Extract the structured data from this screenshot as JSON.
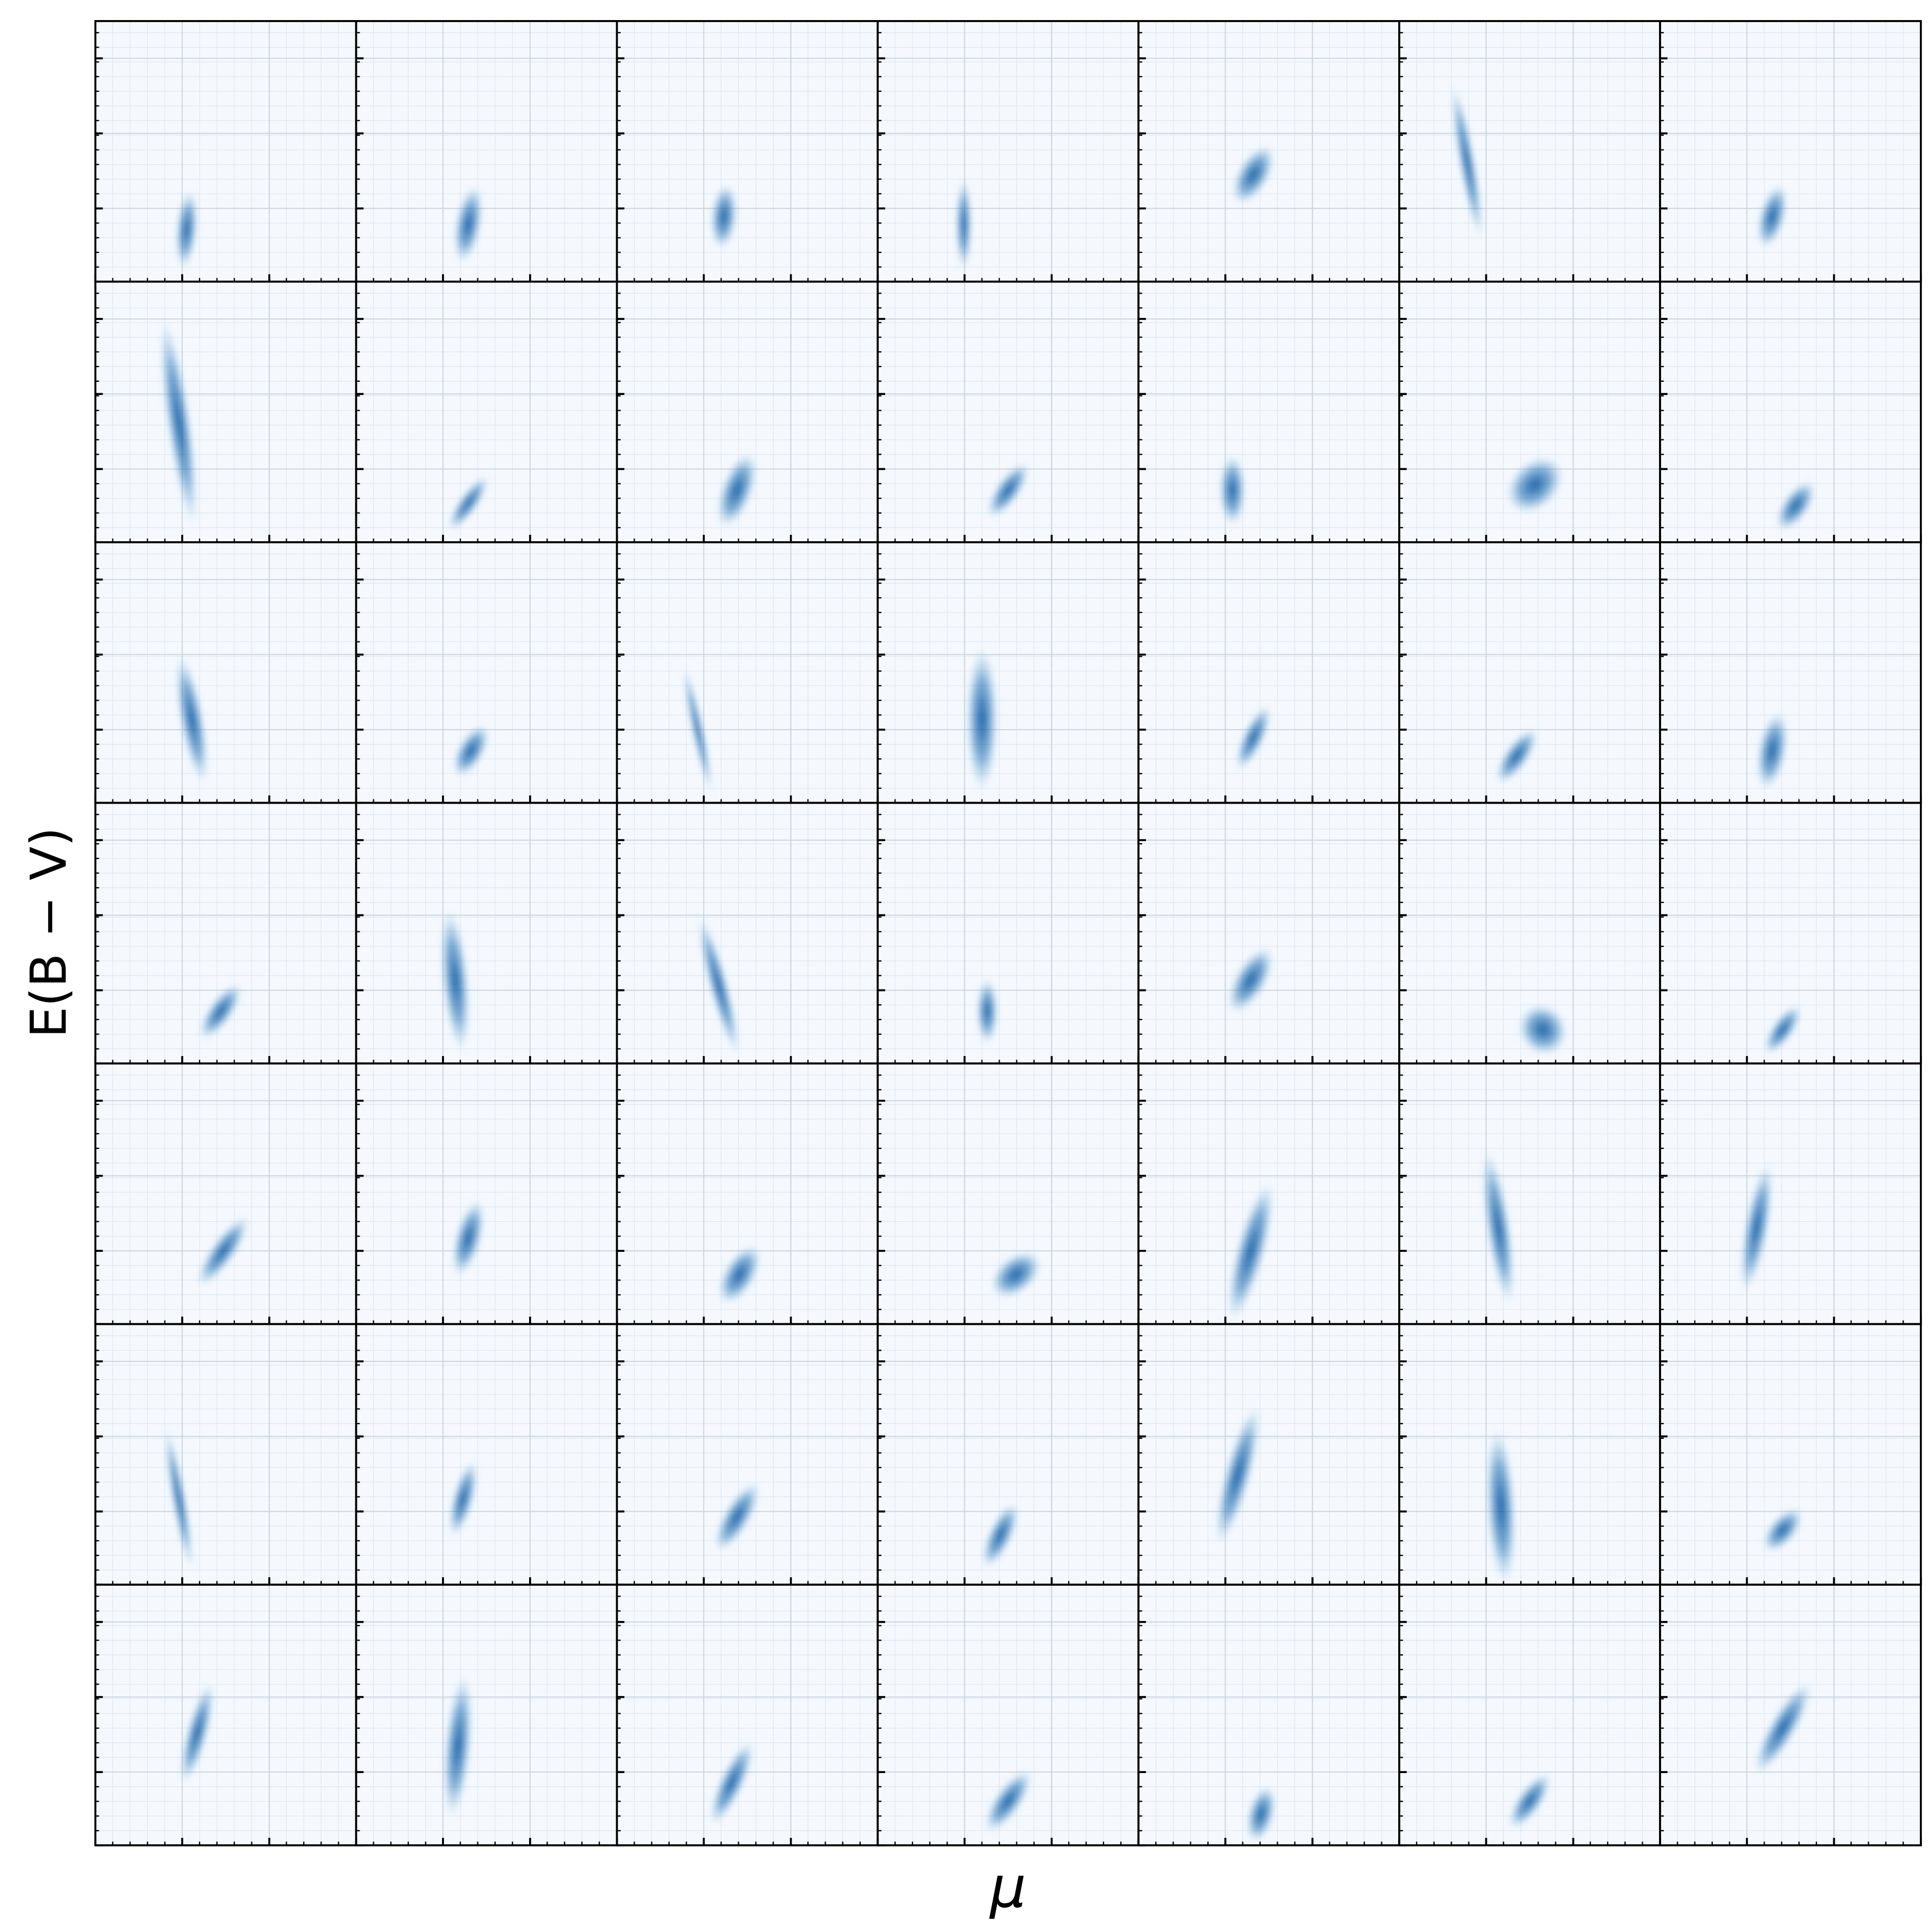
{
  "chart_data": {
    "type": "density-grid",
    "xlabel": "μ",
    "ylabel": "E(B − V)",
    "color": "#08519c",
    "columns": 7,
    "xlim": [
      0,
      1
    ],
    "ylim": [
      0,
      1
    ],
    "xticks": [
      0,
      0.333,
      0.667,
      1
    ],
    "yticks": [
      0,
      0.281,
      0.569,
      0.857
    ],
    "grid": true,
    "panels": [
      {
        "x": 0.35,
        "y": 0.2,
        "width": 0.08,
        "height": 0.3,
        "tilt": 5
      },
      {
        "x": 0.43,
        "y": 0.22,
        "width": 0.1,
        "height": 0.3,
        "tilt": 10
      },
      {
        "x": 0.41,
        "y": 0.25,
        "width": 0.1,
        "height": 0.25,
        "tilt": 5
      },
      {
        "x": 0.33,
        "y": 0.22,
        "width": 0.06,
        "height": 0.35,
        "tilt": 0
      },
      {
        "x": 0.44,
        "y": 0.41,
        "width": 0.12,
        "height": 0.25,
        "tilt": 30
      },
      {
        "x": 0.26,
        "y": 0.46,
        "width": 0.06,
        "height": 0.6,
        "tilt": -10
      },
      {
        "x": 0.43,
        "y": 0.25,
        "width": 0.1,
        "height": 0.25,
        "tilt": 15
      },
      {
        "x": 0.32,
        "y": 0.46,
        "width": 0.09,
        "height": 0.8,
        "tilt": -8
      },
      {
        "x": 0.43,
        "y": 0.15,
        "width": 0.07,
        "height": 0.25,
        "tilt": 35
      },
      {
        "x": 0.46,
        "y": 0.2,
        "width": 0.12,
        "height": 0.3,
        "tilt": 20
      },
      {
        "x": 0.5,
        "y": 0.2,
        "width": 0.09,
        "height": 0.25,
        "tilt": 35
      },
      {
        "x": 0.36,
        "y": 0.2,
        "width": 0.1,
        "height": 0.27,
        "tilt": 0
      },
      {
        "x": 0.52,
        "y": 0.22,
        "width": 0.18,
        "height": 0.25,
        "tilt": 45
      },
      {
        "x": 0.52,
        "y": 0.14,
        "width": 0.1,
        "height": 0.22,
        "tilt": 35
      },
      {
        "x": 0.37,
        "y": 0.32,
        "width": 0.09,
        "height": 0.5,
        "tilt": -10
      },
      {
        "x": 0.44,
        "y": 0.2,
        "width": 0.1,
        "height": 0.22,
        "tilt": 30
      },
      {
        "x": 0.31,
        "y": 0.28,
        "width": 0.04,
        "height": 0.5,
        "tilt": -12
      },
      {
        "x": 0.4,
        "y": 0.32,
        "width": 0.12,
        "height": 0.55,
        "tilt": 0
      },
      {
        "x": 0.44,
        "y": 0.25,
        "width": 0.08,
        "height": 0.27,
        "tilt": 25
      },
      {
        "x": 0.45,
        "y": 0.18,
        "width": 0.09,
        "height": 0.25,
        "tilt": 35
      },
      {
        "x": 0.43,
        "y": 0.2,
        "width": 0.11,
        "height": 0.3,
        "tilt": 10
      },
      {
        "x": 0.48,
        "y": 0.2,
        "width": 0.09,
        "height": 0.25,
        "tilt": 35
      },
      {
        "x": 0.38,
        "y": 0.32,
        "width": 0.1,
        "height": 0.55,
        "tilt": -5
      },
      {
        "x": 0.39,
        "y": 0.3,
        "width": 0.07,
        "height": 0.55,
        "tilt": -15
      },
      {
        "x": 0.42,
        "y": 0.2,
        "width": 0.08,
        "height": 0.25,
        "tilt": 0
      },
      {
        "x": 0.43,
        "y": 0.32,
        "width": 0.12,
        "height": 0.28,
        "tilt": 30
      },
      {
        "x": 0.55,
        "y": 0.13,
        "width": 0.2,
        "height": 0.18,
        "tilt": 55
      },
      {
        "x": 0.47,
        "y": 0.13,
        "width": 0.08,
        "height": 0.22,
        "tilt": 35
      },
      {
        "x": 0.49,
        "y": 0.28,
        "width": 0.09,
        "height": 0.32,
        "tilt": 35
      },
      {
        "x": 0.43,
        "y": 0.33,
        "width": 0.1,
        "height": 0.3,
        "tilt": 15
      },
      {
        "x": 0.47,
        "y": 0.19,
        "width": 0.12,
        "height": 0.25,
        "tilt": 30
      },
      {
        "x": 0.53,
        "y": 0.19,
        "width": 0.14,
        "height": 0.22,
        "tilt": 50
      },
      {
        "x": 0.43,
        "y": 0.28,
        "width": 0.11,
        "height": 0.55,
        "tilt": 15
      },
      {
        "x": 0.38,
        "y": 0.37,
        "width": 0.09,
        "height": 0.6,
        "tilt": -8
      },
      {
        "x": 0.37,
        "y": 0.37,
        "width": 0.09,
        "height": 0.5,
        "tilt": 10
      },
      {
        "x": 0.32,
        "y": 0.33,
        "width": 0.05,
        "height": 0.55,
        "tilt": -10
      },
      {
        "x": 0.41,
        "y": 0.33,
        "width": 0.08,
        "height": 0.3,
        "tilt": 15
      },
      {
        "x": 0.46,
        "y": 0.26,
        "width": 0.1,
        "height": 0.3,
        "tilt": 30
      },
      {
        "x": 0.47,
        "y": 0.19,
        "width": 0.09,
        "height": 0.27,
        "tilt": 25
      },
      {
        "x": 0.38,
        "y": 0.42,
        "width": 0.1,
        "height": 0.55,
        "tilt": 15
      },
      {
        "x": 0.39,
        "y": 0.3,
        "width": 0.11,
        "height": 0.6,
        "tilt": -3
      },
      {
        "x": 0.47,
        "y": 0.21,
        "width": 0.1,
        "height": 0.2,
        "tilt": 40
      },
      {
        "x": 0.39,
        "y": 0.43,
        "width": 0.08,
        "height": 0.4,
        "tilt": 15
      },
      {
        "x": 0.39,
        "y": 0.38,
        "width": 0.1,
        "height": 0.55,
        "tilt": 5
      },
      {
        "x": 0.44,
        "y": 0.24,
        "width": 0.09,
        "height": 0.35,
        "tilt": 25
      },
      {
        "x": 0.5,
        "y": 0.17,
        "width": 0.1,
        "height": 0.28,
        "tilt": 35
      },
      {
        "x": 0.47,
        "y": 0.12,
        "width": 0.1,
        "height": 0.22,
        "tilt": 15
      },
      {
        "x": 0.5,
        "y": 0.17,
        "width": 0.09,
        "height": 0.25,
        "tilt": 35
      },
      {
        "x": 0.47,
        "y": 0.45,
        "width": 0.1,
        "height": 0.4,
        "tilt": 30
      }
    ]
  }
}
